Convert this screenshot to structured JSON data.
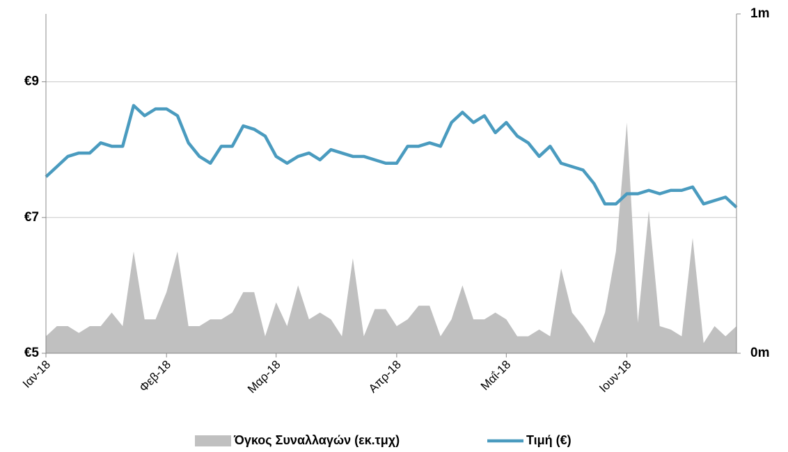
{
  "chart_data": {
    "type": "line",
    "categories": [
      "Ιαν-18",
      null,
      null,
      null,
      null,
      null,
      null,
      null,
      null,
      null,
      null,
      "Φεβ-18",
      null,
      null,
      null,
      null,
      null,
      null,
      null,
      null,
      null,
      "Μαρ-18",
      null,
      null,
      null,
      null,
      null,
      null,
      null,
      null,
      null,
      null,
      "Απρ-18",
      null,
      null,
      null,
      null,
      null,
      null,
      null,
      null,
      null,
      "Μαΐ-18",
      null,
      null,
      null,
      null,
      null,
      null,
      null,
      null,
      null,
      null,
      "Ιουν-18",
      null,
      null,
      null,
      null,
      null,
      null,
      null,
      null,
      null,
      null
    ],
    "series": [
      {
        "name": "Όγκος Συναλλαγών (εκ.τμχ)",
        "type": "area",
        "axis": "y2",
        "color": "#c0c0c0",
        "values": [
          0.05,
          0.08,
          0.08,
          0.06,
          0.08,
          0.08,
          0.12,
          0.08,
          0.3,
          0.1,
          0.1,
          0.18,
          0.3,
          0.08,
          0.08,
          0.1,
          0.1,
          0.12,
          0.18,
          0.18,
          0.05,
          0.15,
          0.08,
          0.2,
          0.1,
          0.12,
          0.1,
          0.05,
          0.28,
          0.05,
          0.13,
          0.13,
          0.08,
          0.1,
          0.14,
          0.14,
          0.05,
          0.1,
          0.2,
          0.1,
          0.1,
          0.12,
          0.1,
          0.05,
          0.05,
          0.07,
          0.05,
          0.25,
          0.12,
          0.08,
          0.03,
          0.12,
          0.3,
          0.68,
          0.09,
          0.42,
          0.08,
          0.07,
          0.05,
          0.34,
          0.03,
          0.08,
          0.05,
          0.08
        ]
      },
      {
        "name": "Τιμή (€)",
        "type": "line",
        "color": "#4a9bbf",
        "values": [
          7.6,
          7.75,
          7.9,
          7.95,
          7.95,
          8.1,
          8.05,
          8.05,
          8.65,
          8.5,
          8.6,
          8.6,
          8.5,
          8.1,
          7.9,
          7.8,
          8.05,
          8.05,
          8.35,
          8.3,
          8.2,
          7.9,
          7.8,
          7.9,
          7.95,
          7.85,
          8.0,
          7.95,
          7.9,
          7.9,
          7.85,
          7.8,
          7.8,
          8.05,
          8.05,
          8.1,
          8.05,
          8.4,
          8.55,
          8.4,
          8.5,
          8.25,
          8.4,
          8.2,
          8.1,
          7.9,
          8.05,
          7.8,
          7.75,
          7.7,
          7.5,
          7.2,
          7.2,
          7.35,
          7.35,
          7.4,
          7.35,
          7.4,
          7.4,
          7.45,
          7.2,
          7.25,
          7.3,
          7.15
        ]
      }
    ],
    "ylim": [
      5,
      10
    ],
    "yticks": [
      {
        "value": 5,
        "label": "€5"
      },
      {
        "value": 7,
        "label": "€7"
      },
      {
        "value": 9,
        "label": "€9"
      }
    ],
    "y2lim": [
      0,
      1
    ],
    "y2ticks": [
      {
        "value": 0,
        "label": "0m"
      },
      {
        "value": 1,
        "label": "1m"
      }
    ],
    "grid": true,
    "legend": "bottom"
  }
}
